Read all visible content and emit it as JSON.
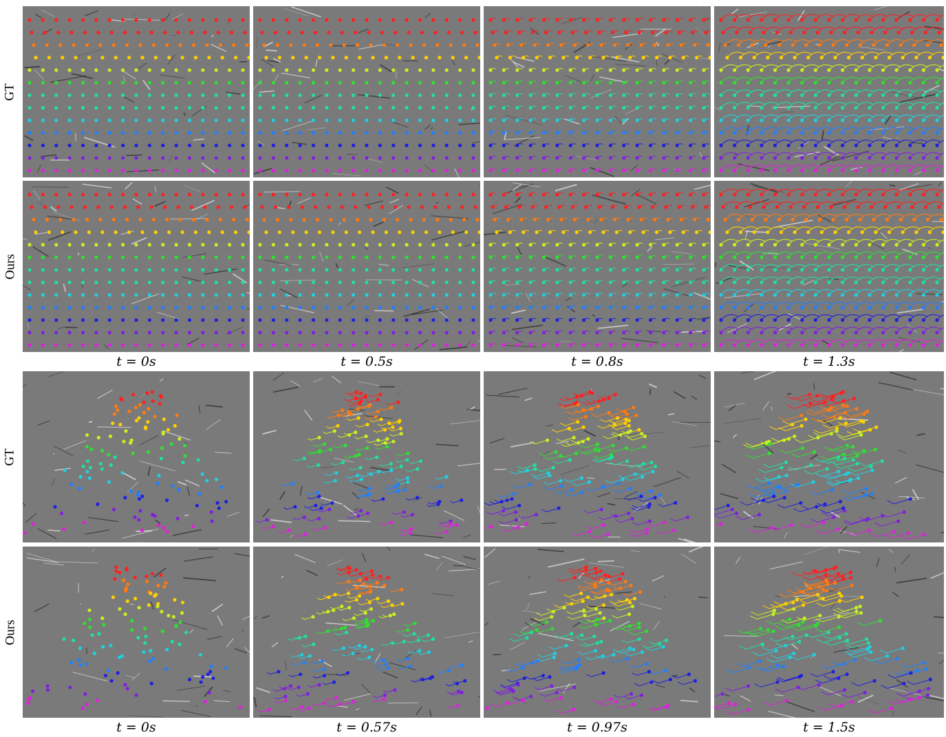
{
  "figure": {
    "groups": [
      {
        "rows": [
          {
            "label": "GT"
          },
          {
            "label": "Ours"
          }
        ],
        "captions": [
          "t = 0s",
          "t = 0.5s",
          "t = 0.8s",
          "t = 1.3s"
        ],
        "scene": "parking lot grid with vehicle, gridded colored point tracks"
      },
      {
        "rows": [
          {
            "label": "GT"
          },
          {
            "label": "Ours"
          }
        ],
        "captions": [
          "t = 0s",
          "t = 0.57s",
          "t = 0.97s",
          "t = 1.5s"
        ],
        "scene": "ground markings with S-shaped colored point tracks"
      }
    ],
    "track_colors": [
      "#ff2020",
      "#ff7a10",
      "#ffd000",
      "#c8f020",
      "#30e030",
      "#20e0a0",
      "#20d0e0",
      "#2080ff",
      "#2020e0",
      "#8020e0",
      "#e020e0"
    ],
    "panel_background": "#7a7a7a"
  }
}
